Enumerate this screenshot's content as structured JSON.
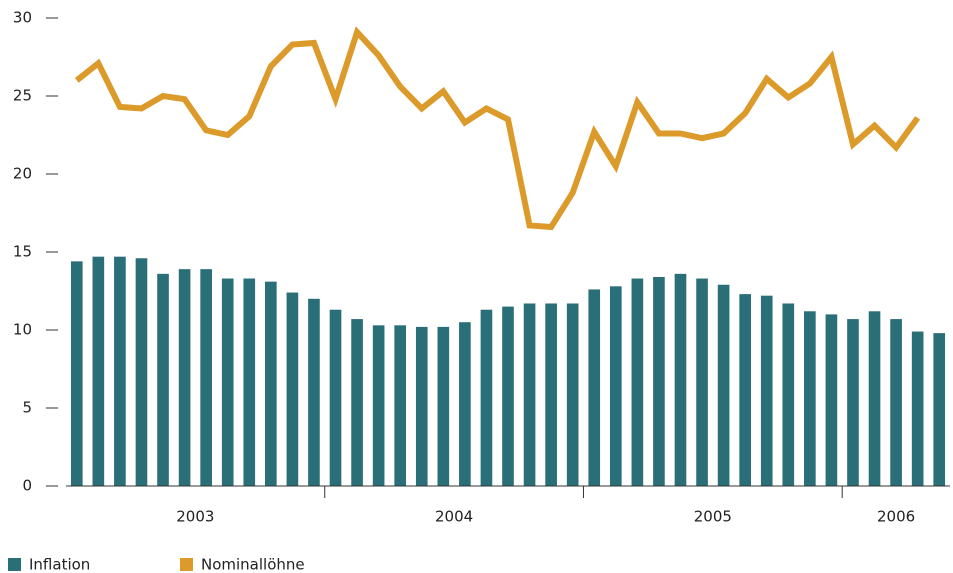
{
  "chart_data": {
    "type": "bar_line",
    "categories": [
      null,
      null,
      null,
      null,
      null,
      null,
      null,
      null,
      null,
      null,
      null,
      null,
      null,
      null,
      null,
      null,
      null,
      null,
      null,
      null,
      null,
      null,
      null,
      null,
      null,
      null,
      null,
      null,
      null,
      null,
      null,
      null,
      null,
      null,
      null,
      null,
      null,
      null,
      null,
      null,
      null
    ],
    "groups": [
      "2003",
      "2004",
      "2005",
      "2006"
    ],
    "series": [
      {
        "name": "Inflation",
        "type": "bar",
        "color": "#2a6f78",
        "values": [
          14.4,
          14.7,
          14.7,
          14.6,
          13.6,
          13.9,
          13.9,
          13.3,
          13.3,
          13.1,
          12.4,
          12.0,
          11.3,
          10.7,
          10.3,
          10.3,
          10.2,
          10.2,
          10.5,
          11.3,
          11.5,
          11.7,
          11.7,
          11.7,
          12.6,
          12.8,
          13.3,
          13.4,
          13.6,
          13.3,
          12.9,
          12.3,
          12.2,
          11.7,
          11.2,
          11.0,
          10.7,
          11.2,
          10.7,
          9.9,
          9.8
        ]
      },
      {
        "name": "Nominallöhne",
        "type": "line",
        "color": "#dc9a2b",
        "values": [
          26.0,
          27.1,
          24.3,
          24.2,
          25.0,
          24.8,
          22.8,
          22.5,
          23.7,
          26.9,
          28.3,
          28.4,
          24.8,
          29.1,
          27.6,
          25.6,
          24.2,
          25.3,
          23.3,
          24.2,
          23.5,
          16.7,
          16.6,
          18.8,
          22.7,
          20.5,
          24.6,
          22.6,
          22.6,
          22.3,
          22.6,
          23.9,
          26.1,
          24.9,
          25.8,
          27.5,
          21.9,
          23.1,
          21.7,
          23.6,
          null
        ]
      }
    ],
    "ylim": [
      0,
      30
    ],
    "yticks": [
      0,
      5,
      10,
      15,
      20,
      25,
      30
    ],
    "group_size": 12,
    "grid": false
  }
}
